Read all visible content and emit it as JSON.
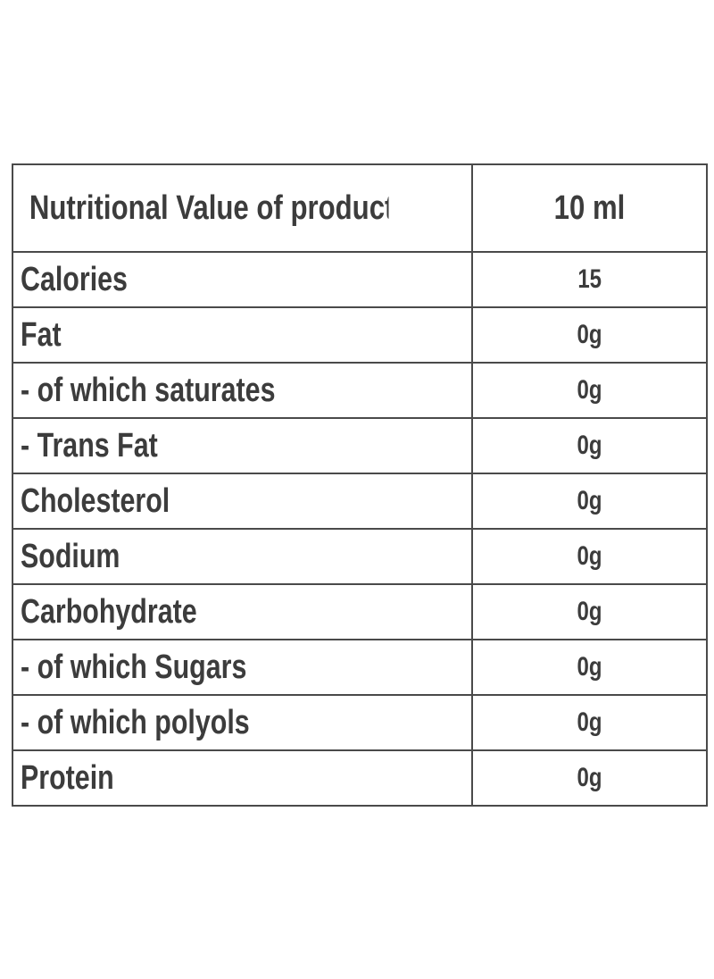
{
  "table": {
    "header": {
      "label": "Nutritional Value of product",
      "value": "10 ml"
    },
    "rows": [
      {
        "label": "Calories",
        "value": "15"
      },
      {
        "label": "Fat",
        "value": "0g"
      },
      {
        "label": "- of which saturates",
        "value": "0g"
      },
      {
        "label": "- Trans Fat",
        "value": "0g"
      },
      {
        "label": "Cholesterol",
        "value": "0g"
      },
      {
        "label": "Sodium",
        "value": "0g"
      },
      {
        "label": "Carbohydrate",
        "value": "0g"
      },
      {
        "label": "- of which Sugars",
        "value": "0g"
      },
      {
        "label": "- of which polyols",
        "value": "0g"
      },
      {
        "label": "Protein",
        "value": "0g"
      }
    ]
  }
}
